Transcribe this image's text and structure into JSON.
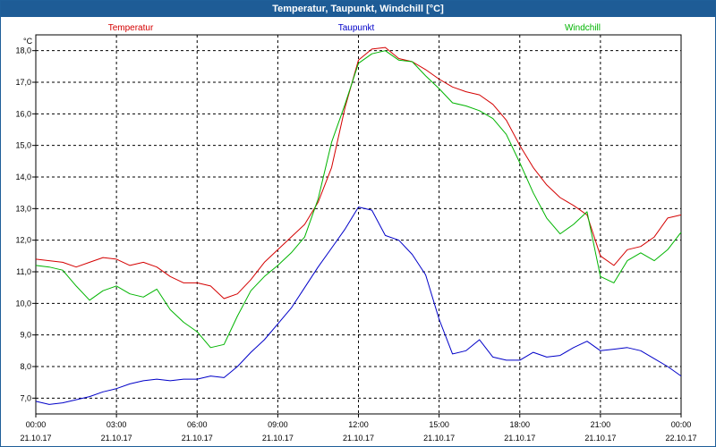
{
  "window": {
    "title": "Temperatur, Taupunkt, Windchill [°C]"
  },
  "chart_data": {
    "type": "line",
    "title": "Temperatur, Taupunkt, Windchill [°C]",
    "ylabel": "°C",
    "xlabel": "",
    "ylim": [
      6.5,
      18.5
    ],
    "xlim": [
      0,
      24
    ],
    "y_ticks": [
      "7,0",
      "8,0",
      "9,0",
      "10,0",
      "11,0",
      "12,0",
      "13,0",
      "14,0",
      "15,0",
      "16,0",
      "17,0",
      "18,0"
    ],
    "y_tick_values": [
      7,
      8,
      9,
      10,
      11,
      12,
      13,
      14,
      15,
      16,
      17,
      18
    ],
    "x_ticks": [
      {
        "time": "00:00",
        "date": "21.10.17",
        "hour": 0
      },
      {
        "time": "03:00",
        "date": "21.10.17",
        "hour": 3
      },
      {
        "time": "06:00",
        "date": "21.10.17",
        "hour": 6
      },
      {
        "time": "09:00",
        "date": "21.10.17",
        "hour": 9
      },
      {
        "time": "12:00",
        "date": "21.10.17",
        "hour": 12
      },
      {
        "time": "15:00",
        "date": "21.10.17",
        "hour": 15
      },
      {
        "time": "18:00",
        "date": "21.10.17",
        "hour": 18
      },
      {
        "time": "21:00",
        "date": "21.10.17",
        "hour": 21
      },
      {
        "time": "00:00",
        "date": "22.10.17",
        "hour": 24
      }
    ],
    "grid": true,
    "legend": "top",
    "series": [
      {
        "name": "Temperatur",
        "color": "#d40000",
        "x": [
          0,
          0.5,
          1,
          1.5,
          2,
          2.5,
          3,
          3.5,
          4,
          4.5,
          5,
          5.5,
          6,
          6.5,
          7,
          7.5,
          8,
          8.5,
          9,
          9.5,
          10,
          10.5,
          11,
          11.5,
          12,
          12.5,
          13,
          13.5,
          14,
          14.5,
          15,
          15.5,
          16,
          16.5,
          17,
          17.5,
          18,
          18.5,
          19,
          19.5,
          20,
          20.5,
          21,
          21.5,
          22,
          22.5,
          23,
          23.5,
          24
        ],
        "values": [
          11.4,
          11.35,
          11.3,
          11.15,
          11.3,
          11.45,
          11.4,
          11.2,
          11.3,
          11.15,
          10.85,
          10.65,
          10.65,
          10.55,
          10.15,
          10.3,
          10.75,
          11.3,
          11.7,
          12.1,
          12.5,
          13.2,
          14.3,
          16.2,
          17.7,
          18.05,
          18.1,
          17.75,
          17.65,
          17.4,
          17.1,
          16.85,
          16.7,
          16.6,
          16.3,
          15.8,
          15.0,
          14.3,
          13.75,
          13.35,
          13.1,
          12.8,
          11.5,
          11.2,
          11.7,
          11.8,
          12.1,
          12.7,
          12.8
        ]
      },
      {
        "name": "Taupunkt",
        "color": "#0000c8",
        "x": [
          0,
          0.5,
          1,
          1.5,
          2,
          2.5,
          3,
          3.5,
          4,
          4.5,
          5,
          5.5,
          6,
          6.5,
          7,
          7.5,
          8,
          8.5,
          9,
          9.5,
          10,
          10.5,
          11,
          11.5,
          12,
          12.5,
          13,
          13.5,
          14,
          14.5,
          15,
          15.5,
          16,
          16.5,
          17,
          17.5,
          18,
          18.5,
          19,
          19.5,
          20,
          20.5,
          21,
          21.5,
          22,
          22.5,
          23,
          23.5,
          24
        ],
        "values": [
          6.9,
          6.8,
          6.85,
          6.95,
          7.05,
          7.2,
          7.3,
          7.45,
          7.55,
          7.6,
          7.55,
          7.6,
          7.6,
          7.7,
          7.65,
          8.0,
          8.45,
          8.85,
          9.35,
          9.85,
          10.5,
          11.15,
          11.75,
          12.35,
          13.05,
          12.95,
          12.15,
          12.0,
          11.55,
          10.9,
          9.5,
          8.4,
          8.5,
          8.85,
          8.3,
          8.2,
          8.2,
          8.45,
          8.3,
          8.35,
          8.6,
          8.8,
          8.5,
          8.55,
          8.6,
          8.5,
          8.25,
          8.0,
          7.7
        ]
      },
      {
        "name": "Windchill",
        "color": "#00b400",
        "x": [
          0,
          0.5,
          1,
          1.5,
          2,
          2.5,
          3,
          3.5,
          4,
          4.5,
          5,
          5.5,
          6,
          6.5,
          7,
          7.5,
          8,
          8.5,
          9,
          9.5,
          10,
          10.5,
          11,
          11.5,
          12,
          12.5,
          13,
          13.5,
          14,
          14.5,
          15,
          15.5,
          16,
          16.5,
          17,
          17.5,
          18,
          18.5,
          19,
          19.5,
          20,
          20.5,
          21,
          21.5,
          22,
          22.5,
          23,
          23.5,
          24
        ],
        "values": [
          11.2,
          11.15,
          11.05,
          10.55,
          10.1,
          10.4,
          10.55,
          10.3,
          10.2,
          10.45,
          9.8,
          9.4,
          9.1,
          8.6,
          8.7,
          9.6,
          10.4,
          10.85,
          11.2,
          11.6,
          12.1,
          13.3,
          15.1,
          16.3,
          17.6,
          17.9,
          18.0,
          17.7,
          17.65,
          17.2,
          16.8,
          16.35,
          16.25,
          16.1,
          15.85,
          15.35,
          14.45,
          13.5,
          12.7,
          12.2,
          12.5,
          12.9,
          10.85,
          10.65,
          11.35,
          11.6,
          11.35,
          11.7,
          12.25
        ]
      }
    ]
  }
}
